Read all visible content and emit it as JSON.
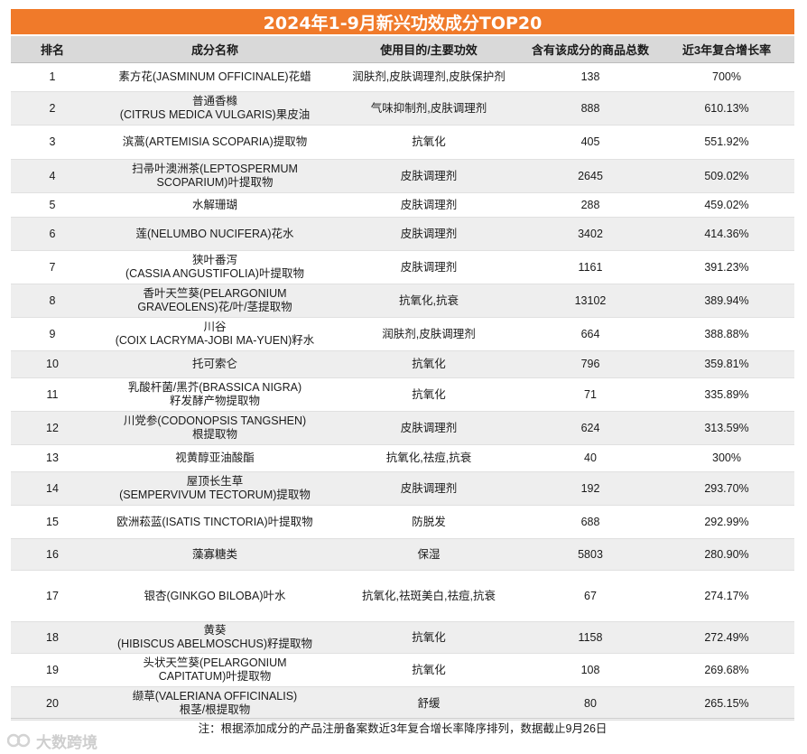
{
  "title": "2024年1-9月新兴功效成分TOP20",
  "headers": [
    "排名",
    "成分名称",
    "使用目的/主要功效",
    "含有该成分的商品总数",
    "近3年复合增长率"
  ],
  "rows": [
    {
      "rank": "1",
      "name": [
        "素方花(JASMINUM OFFICINALE)花蜡"
      ],
      "purpose": "润肤剂,皮肤调理剂,皮肤保护剂",
      "count": "138",
      "growth": "700%"
    },
    {
      "rank": "2",
      "name": [
        "普通香橼",
        "(CITRUS MEDICA VULGARIS)果皮油"
      ],
      "purpose": "气味抑制剂,皮肤调理剂",
      "count": "888",
      "growth": "610.13%"
    },
    {
      "rank": "3",
      "name": [
        "滨蒿(ARTEMISIA SCOPARIA)提取物"
      ],
      "purpose": "抗氧化",
      "count": "405",
      "growth": "551.92%"
    },
    {
      "rank": "4",
      "name": [
        "扫帚叶澳洲茶(LEPTOSPERMUM",
        "SCOPARIUM)叶提取物"
      ],
      "purpose": "皮肤调理剂",
      "count": "2645",
      "growth": "509.02%"
    },
    {
      "rank": "5",
      "name": [
        "水解珊瑚"
      ],
      "purpose": "皮肤调理剂",
      "count": "288",
      "growth": "459.02%"
    },
    {
      "rank": "6",
      "name": [
        "莲(NELUMBO NUCIFERA)花水"
      ],
      "purpose": "皮肤调理剂",
      "count": "3402",
      "growth": "414.36%"
    },
    {
      "rank": "7",
      "name": [
        "狭叶番泻",
        "(CASSIA ANGUSTIFOLIA)叶提取物"
      ],
      "purpose": "皮肤调理剂",
      "count": "1161",
      "growth": "391.23%"
    },
    {
      "rank": "8",
      "name": [
        "香叶天竺葵(PELARGONIUM",
        "GRAVEOLENS)花/叶/茎提取物"
      ],
      "purpose": "抗氧化,抗衰",
      "count": "13102",
      "growth": "389.94%"
    },
    {
      "rank": "9",
      "name": [
        "川谷",
        "(COIX LACRYMA-JOBI MA-YUEN)籽水"
      ],
      "purpose": "润肤剂,皮肤调理剂",
      "count": "664",
      "growth": "388.88%"
    },
    {
      "rank": "10",
      "name": [
        "托可索仑"
      ],
      "purpose": "抗氧化",
      "count": "796",
      "growth": "359.81%"
    },
    {
      "rank": "11",
      "name": [
        "乳酸杆菌/黑芥(BRASSICA NIGRA)",
        "籽发酵产物提取物"
      ],
      "purpose": "抗氧化",
      "count": "71",
      "growth": "335.89%"
    },
    {
      "rank": "12",
      "name": [
        "川党参(CODONOPSIS TANGSHEN)",
        "根提取物"
      ],
      "purpose": "皮肤调理剂",
      "count": "624",
      "growth": "313.59%"
    },
    {
      "rank": "13",
      "name": [
        "视黄醇亚油酸酯"
      ],
      "purpose": "抗氧化,祛痘,抗衰",
      "count": "40",
      "growth": "300%"
    },
    {
      "rank": "14",
      "name": [
        "屋顶长生草",
        "(SEMPERVIVUM TECTORUM)提取物"
      ],
      "purpose": "皮肤调理剂",
      "count": "192",
      "growth": "293.70%"
    },
    {
      "rank": "15",
      "name": [
        "欧洲菘蓝(ISATIS TINCTORIA)叶提取物"
      ],
      "purpose": "防脱发",
      "count": "688",
      "growth": "292.99%"
    },
    {
      "rank": "16",
      "name": [
        "藻寡糖类"
      ],
      "purpose": "保湿",
      "count": "5803",
      "growth": "280.90%"
    },
    {
      "rank": "17",
      "name": [
        "银杏(GINKGO BILOBA)叶水"
      ],
      "purpose": "抗氧化,祛斑美白,祛痘,抗衰",
      "count": "67",
      "growth": "274.17%"
    },
    {
      "rank": "18",
      "name": [
        "黄葵",
        "(HIBISCUS ABELMOSCHUS)籽提取物"
      ],
      "purpose": "抗氧化",
      "count": "1158",
      "growth": "272.49%"
    },
    {
      "rank": "19",
      "name": [
        "头状天竺葵(PELARGONIUM",
        "CAPITATUM)叶提取物"
      ],
      "purpose": "抗氧化",
      "count": "108",
      "growth": "269.68%"
    },
    {
      "rank": "20",
      "name": [
        "缬草(VALERIANA OFFICINALIS)",
        "根茎/根提取物"
      ],
      "purpose": "舒缓",
      "count": "80",
      "growth": "265.15%"
    }
  ],
  "footer": "注：根据添加成分的产品注册备案数近3年复合增长率降序排列，数据截止9月26日",
  "watermark": "大数跨境",
  "colors": {
    "title_bg": "#f07a2a",
    "header_bg": "#d9d9d9",
    "stripe": "#eeeeee"
  }
}
